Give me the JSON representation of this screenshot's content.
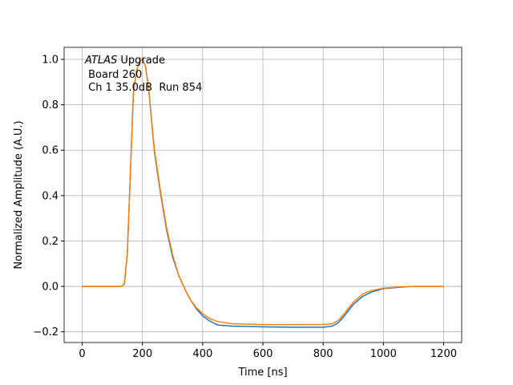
{
  "chart_data": {
    "type": "line",
    "xlabel": "Time [ns]",
    "ylabel": "Normalized Amplitude (A.U.)",
    "annotation": {
      "italic": "ATLAS",
      "rest": " Upgrade",
      "lines": [
        " Board 260",
        " Ch 1 35.0dB  Run 854"
      ]
    },
    "x": [
      0,
      50,
      100,
      130,
      140,
      150,
      160,
      170,
      180,
      190,
      200,
      210,
      220,
      240,
      260,
      280,
      300,
      320,
      340,
      360,
      380,
      400,
      420,
      450,
      500,
      600,
      700,
      800,
      830,
      850,
      870,
      900,
      930,
      960,
      1000,
      1050,
      1100,
      1200
    ],
    "series": [
      {
        "color": "#1f77b4",
        "values": [
          0,
          0,
          0,
          0,
          0.01,
          0.15,
          0.5,
          0.85,
          0.95,
          0.99,
          1.0,
          0.97,
          0.88,
          0.59,
          0.41,
          0.25,
          0.13,
          0.05,
          -0.01,
          -0.06,
          -0.1,
          -0.13,
          -0.15,
          -0.17,
          -0.175,
          -0.178,
          -0.18,
          -0.18,
          -0.175,
          -0.16,
          -0.13,
          -0.08,
          -0.045,
          -0.025,
          -0.01,
          -0.004,
          0,
          0
        ]
      },
      {
        "color": "#ff7f0e",
        "values": [
          0,
          0,
          0,
          0,
          0.01,
          0.15,
          0.5,
          0.85,
          0.95,
          0.99,
          1.0,
          0.97,
          0.88,
          0.6,
          0.42,
          0.26,
          0.14,
          0.05,
          -0.01,
          -0.06,
          -0.095,
          -0.12,
          -0.14,
          -0.155,
          -0.165,
          -0.168,
          -0.168,
          -0.168,
          -0.165,
          -0.15,
          -0.12,
          -0.07,
          -0.035,
          -0.018,
          -0.008,
          -0.003,
          0,
          0
        ]
      }
    ],
    "xlim": [
      -60,
      1260
    ],
    "ylim": [
      -0.247,
      1.053
    ],
    "xticks": [
      0,
      200,
      400,
      600,
      800,
      1000,
      1200
    ],
    "yticks": [
      {
        "value": -0.2,
        "label": "−0.2"
      },
      {
        "value": 0,
        "label": "0.0"
      },
      {
        "value": 0.2,
        "label": "0.2"
      },
      {
        "value": 0.4,
        "label": "0.4"
      },
      {
        "value": 0.6,
        "label": "0.6"
      },
      {
        "value": 0.8,
        "label": "0.8"
      },
      {
        "value": 1.0,
        "label": "1.0"
      }
    ],
    "grid": true
  }
}
